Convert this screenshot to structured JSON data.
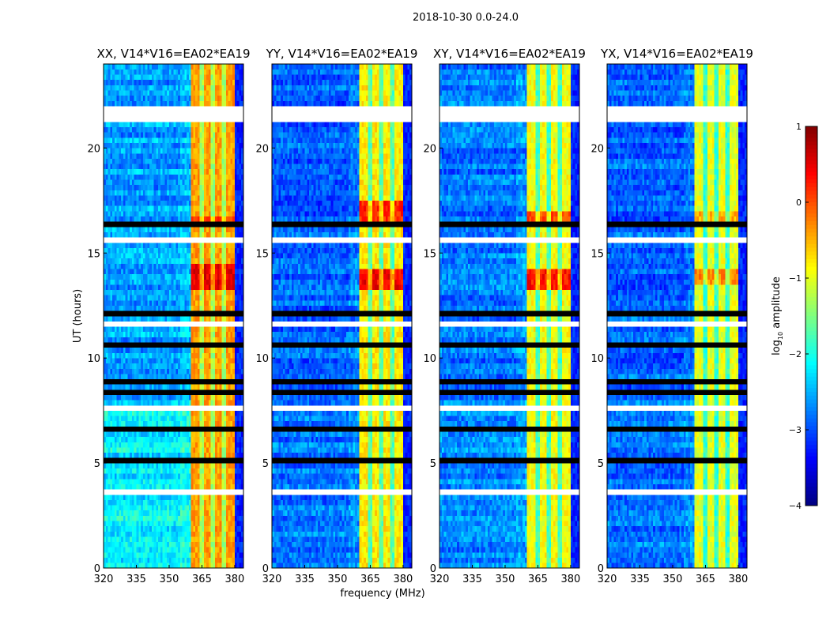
{
  "suptitle": "2018-10-30 0.0-24.0",
  "xlabel": "frequency (MHz)",
  "ylabel": "UT (hours)",
  "colorbar": {
    "label": "log10 amplitude",
    "label_main": "log",
    "label_sub": "10",
    "label_rest": " amplitude",
    "range": [
      -4,
      1
    ],
    "ticks": [
      "1",
      "0",
      "−1",
      "−2",
      "−3",
      "−4"
    ],
    "tick_values": [
      1,
      0,
      -1,
      -2,
      -3,
      -4
    ],
    "colormap": "jet"
  },
  "x_ticks": [
    "320",
    "335",
    "350",
    "365",
    "380"
  ],
  "x_tick_values": [
    320,
    335,
    350,
    365,
    380
  ],
  "y_ticks": [
    "0",
    "5",
    "10",
    "15",
    "20"
  ],
  "y_tick_values": [
    0,
    5,
    10,
    15,
    20
  ],
  "xlim": [
    320,
    384
  ],
  "ylim": [
    0,
    24
  ],
  "flagged_white_hours": [
    [
      21.3,
      21.95
    ],
    [
      23.2,
      23.3
    ],
    [
      22.5,
      22.6
    ],
    [
      15.5,
      15.65
    ],
    [
      11.5,
      11.65
    ],
    [
      7.55,
      7.65
    ],
    [
      6.0,
      6.1
    ],
    [
      4.45,
      4.55
    ],
    [
      3.55,
      3.65
    ],
    [
      19.9,
      20.0
    ],
    [
      16.0,
      16.05
    ]
  ],
  "flagged_black_hours": [
    [
      12.0,
      12.35
    ],
    [
      18.9,
      19.1
    ],
    [
      8.2,
      8.45
    ],
    [
      8.8,
      8.9
    ],
    [
      10.6,
      10.7
    ],
    [
      10.95,
      11.0
    ],
    [
      9.2,
      9.3
    ],
    [
      4.9,
      5.2
    ],
    [
      2.4,
      2.55
    ],
    [
      6.6,
      6.7
    ],
    [
      16.3,
      16.4
    ],
    [
      1.05,
      1.1
    ],
    [
      9.7,
      9.8
    ],
    [
      14.5,
      14.55
    ],
    [
      17.8,
      17.85
    ]
  ],
  "chart_data": [
    {
      "type": "heatmap",
      "title": "XX, V14*V16=EA02*EA19",
      "background_level": -2.6,
      "lower_background_level": -2.2,
      "band_mhz": [
        360,
        380
      ],
      "band_level": -0.4,
      "notch_channels_mhz": [
        365,
        370,
        375
      ],
      "hot_periods": [
        {
          "hours": [
            13.2,
            14.4
          ],
          "level": 0.5
        },
        {
          "hours": [
            16.4,
            16.8
          ],
          "level": 0.1
        }
      ]
    },
    {
      "type": "heatmap",
      "title": "YY, V14*V16=EA02*EA19",
      "background_level": -2.9,
      "lower_background_level": -2.8,
      "band_mhz": [
        360,
        380
      ],
      "band_level": -0.8,
      "notch_channels_mhz": [
        365,
        370,
        375
      ],
      "hot_periods": [
        {
          "hours": [
            13.3,
            14.3
          ],
          "level": 0.4
        },
        {
          "hours": [
            16.4,
            17.6
          ],
          "level": 0.2
        }
      ]
    },
    {
      "type": "heatmap",
      "title": "XY, V14*V16=EA02*EA19",
      "background_level": -2.8,
      "lower_background_level": -2.7,
      "band_mhz": [
        360,
        380
      ],
      "band_level": -0.9,
      "notch_channels_mhz": [
        365,
        370,
        375
      ],
      "hot_periods": [
        {
          "hours": [
            13.3,
            14.3
          ],
          "level": 0.3
        },
        {
          "hours": [
            16.5,
            16.9
          ],
          "level": 0.0
        }
      ]
    },
    {
      "type": "heatmap",
      "title": "YX, V14*V16=EA02*EA19",
      "background_level": -2.9,
      "lower_background_level": -2.8,
      "band_mhz": [
        360,
        380
      ],
      "band_level": -1.0,
      "notch_channels_mhz": [
        365,
        370,
        375
      ],
      "hot_periods": [
        {
          "hours": [
            13.4,
            14.2
          ],
          "level": -0.3
        },
        {
          "hours": [
            16.5,
            16.9
          ],
          "level": -0.5
        }
      ]
    }
  ]
}
